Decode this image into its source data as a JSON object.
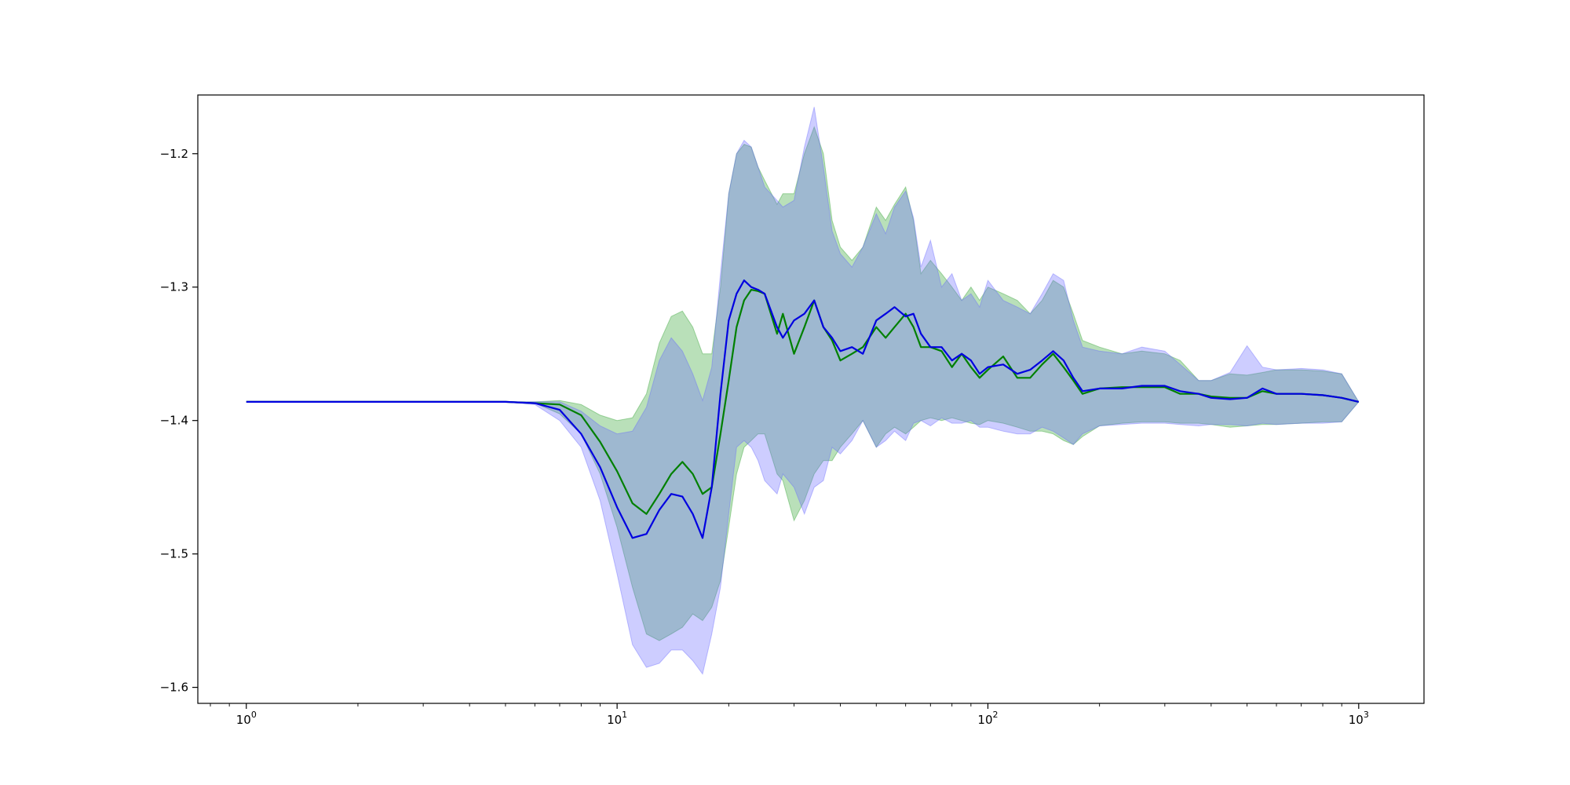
{
  "chart_data": {
    "type": "line",
    "title": "",
    "xlabel": "",
    "ylabel": "",
    "xscale": "log",
    "xlim": [
      0.74,
      1500
    ],
    "ylim": [
      -1.612,
      -1.156
    ],
    "grid": false,
    "legend": "none",
    "x_ticks": [
      {
        "value": 1,
        "base": "10",
        "exp": "0"
      },
      {
        "value": 10,
        "base": "10",
        "exp": "1"
      },
      {
        "value": 100,
        "base": "10",
        "exp": "2"
      },
      {
        "value": 1000,
        "base": "10",
        "exp": "3"
      }
    ],
    "y_ticks": [
      {
        "value": -1.2,
        "label": "−1.2"
      },
      {
        "value": -1.3,
        "label": "−1.3"
      },
      {
        "value": -1.4,
        "label": "−1.4"
      },
      {
        "value": -1.5,
        "label": "−1.5"
      },
      {
        "value": -1.6,
        "label": "−1.6"
      }
    ],
    "series": [
      {
        "color": "#008000",
        "band_color": "#2ca02c",
        "x": [
          1,
          2,
          5,
          6,
          7,
          8,
          9,
          10,
          11,
          12,
          13,
          14,
          15,
          16,
          17,
          18,
          19,
          20,
          21,
          22,
          23,
          24,
          25,
          27,
          28,
          30,
          32,
          34,
          36,
          38,
          40,
          43,
          46,
          50,
          53,
          56,
          60,
          63,
          66,
          70,
          75,
          80,
          85,
          90,
          95,
          100,
          110,
          120,
          130,
          140,
          150,
          160,
          170,
          180,
          200,
          230,
          260,
          300,
          330,
          370,
          400,
          450,
          500,
          550,
          600,
          700,
          800,
          900,
          1000
        ],
        "y": [
          -1.386,
          -1.386,
          -1.386,
          -1.387,
          -1.388,
          -1.396,
          -1.416,
          -1.438,
          -1.462,
          -1.47,
          -1.455,
          -1.44,
          -1.431,
          -1.44,
          -1.455,
          -1.45,
          -1.41,
          -1.37,
          -1.33,
          -1.31,
          -1.302,
          -1.303,
          -1.305,
          -1.335,
          -1.32,
          -1.35,
          -1.33,
          -1.31,
          -1.33,
          -1.34,
          -1.355,
          -1.35,
          -1.345,
          -1.33,
          -1.338,
          -1.33,
          -1.32,
          -1.33,
          -1.345,
          -1.345,
          -1.348,
          -1.36,
          -1.35,
          -1.36,
          -1.368,
          -1.362,
          -1.352,
          -1.368,
          -1.368,
          -1.358,
          -1.35,
          -1.36,
          -1.37,
          -1.38,
          -1.376,
          -1.375,
          -1.375,
          -1.375,
          -1.38,
          -1.38,
          -1.382,
          -1.383,
          -1.383,
          -1.378,
          -1.38,
          -1.38,
          -1.381,
          -1.383,
          -1.386
        ],
        "upper": [
          -1.386,
          -1.386,
          -1.386,
          -1.386,
          -1.385,
          -1.388,
          -1.396,
          -1.4,
          -1.398,
          -1.38,
          -1.342,
          -1.322,
          -1.318,
          -1.33,
          -1.35,
          -1.35,
          -1.3,
          -1.23,
          -1.2,
          -1.193,
          -1.195,
          -1.21,
          -1.22,
          -1.238,
          -1.23,
          -1.23,
          -1.2,
          -1.18,
          -1.2,
          -1.25,
          -1.27,
          -1.28,
          -1.27,
          -1.24,
          -1.25,
          -1.238,
          -1.225,
          -1.25,
          -1.29,
          -1.28,
          -1.29,
          -1.3,
          -1.31,
          -1.3,
          -1.31,
          -1.3,
          -1.305,
          -1.31,
          -1.32,
          -1.31,
          -1.295,
          -1.3,
          -1.32,
          -1.34,
          -1.345,
          -1.35,
          -1.348,
          -1.35,
          -1.355,
          -1.37,
          -1.37,
          -1.365,
          -1.366,
          -1.364,
          -1.362,
          -1.362,
          -1.363,
          -1.365,
          -1.386
        ],
        "lower": [
          -1.386,
          -1.386,
          -1.386,
          -1.387,
          -1.395,
          -1.41,
          -1.44,
          -1.48,
          -1.525,
          -1.56,
          -1.565,
          -1.56,
          -1.555,
          -1.545,
          -1.55,
          -1.54,
          -1.52,
          -1.48,
          -1.44,
          -1.42,
          -1.415,
          -1.41,
          -1.41,
          -1.44,
          -1.445,
          -1.475,
          -1.46,
          -1.44,
          -1.43,
          -1.43,
          -1.42,
          -1.41,
          -1.4,
          -1.42,
          -1.41,
          -1.405,
          -1.41,
          -1.405,
          -1.4,
          -1.398,
          -1.4,
          -1.398,
          -1.4,
          -1.402,
          -1.403,
          -1.4,
          -1.402,
          -1.405,
          -1.408,
          -1.408,
          -1.41,
          -1.415,
          -1.418,
          -1.412,
          -1.404,
          -1.402,
          -1.401,
          -1.401,
          -1.402,
          -1.402,
          -1.403,
          -1.405,
          -1.404,
          -1.403,
          -1.403,
          -1.402,
          -1.401,
          -1.401,
          -1.386
        ]
      },
      {
        "color": "#0000e0",
        "band_color": "#6666ff",
        "x": [
          1,
          2,
          5,
          6,
          7,
          8,
          9,
          10,
          11,
          12,
          13,
          14,
          15,
          16,
          17,
          18,
          19,
          20,
          21,
          22,
          23,
          24,
          25,
          27,
          28,
          30,
          32,
          34,
          36,
          38,
          40,
          43,
          46,
          50,
          53,
          56,
          60,
          63,
          66,
          70,
          75,
          80,
          85,
          90,
          95,
          100,
          110,
          120,
          130,
          140,
          150,
          160,
          170,
          180,
          200,
          230,
          260,
          300,
          330,
          370,
          400,
          450,
          500,
          550,
          600,
          700,
          800,
          900,
          1000
        ],
        "y": [
          -1.386,
          -1.386,
          -1.386,
          -1.387,
          -1.392,
          -1.41,
          -1.435,
          -1.465,
          -1.488,
          -1.485,
          -1.467,
          -1.455,
          -1.457,
          -1.47,
          -1.488,
          -1.45,
          -1.38,
          -1.325,
          -1.305,
          -1.295,
          -1.3,
          -1.302,
          -1.305,
          -1.33,
          -1.338,
          -1.325,
          -1.32,
          -1.31,
          -1.33,
          -1.338,
          -1.348,
          -1.345,
          -1.35,
          -1.325,
          -1.32,
          -1.315,
          -1.322,
          -1.32,
          -1.335,
          -1.345,
          -1.345,
          -1.355,
          -1.35,
          -1.355,
          -1.365,
          -1.36,
          -1.358,
          -1.365,
          -1.362,
          -1.355,
          -1.348,
          -1.355,
          -1.368,
          -1.378,
          -1.376,
          -1.376,
          -1.374,
          -1.374,
          -1.378,
          -1.38,
          -1.383,
          -1.384,
          -1.383,
          -1.376,
          -1.38,
          -1.38,
          -1.381,
          -1.383,
          -1.386
        ],
        "upper": [
          -1.386,
          -1.386,
          -1.386,
          -1.386,
          -1.386,
          -1.393,
          -1.404,
          -1.41,
          -1.408,
          -1.39,
          -1.355,
          -1.338,
          -1.348,
          -1.365,
          -1.385,
          -1.36,
          -1.29,
          -1.23,
          -1.2,
          -1.19,
          -1.195,
          -1.21,
          -1.225,
          -1.235,
          -1.24,
          -1.235,
          -1.195,
          -1.165,
          -1.21,
          -1.258,
          -1.275,
          -1.285,
          -1.27,
          -1.245,
          -1.26,
          -1.24,
          -1.228,
          -1.248,
          -1.285,
          -1.265,
          -1.3,
          -1.29,
          -1.31,
          -1.305,
          -1.315,
          -1.295,
          -1.31,
          -1.315,
          -1.32,
          -1.305,
          -1.29,
          -1.295,
          -1.325,
          -1.345,
          -1.348,
          -1.35,
          -1.345,
          -1.348,
          -1.358,
          -1.37,
          -1.37,
          -1.364,
          -1.344,
          -1.36,
          -1.362,
          -1.361,
          -1.362,
          -1.365,
          -1.386
        ],
        "lower": [
          -1.386,
          -1.386,
          -1.386,
          -1.388,
          -1.4,
          -1.42,
          -1.46,
          -1.515,
          -1.568,
          -1.585,
          -1.582,
          -1.572,
          -1.572,
          -1.58,
          -1.59,
          -1.56,
          -1.525,
          -1.47,
          -1.42,
          -1.415,
          -1.42,
          -1.43,
          -1.445,
          -1.455,
          -1.44,
          -1.45,
          -1.47,
          -1.45,
          -1.445,
          -1.42,
          -1.425,
          -1.415,
          -1.4,
          -1.42,
          -1.415,
          -1.408,
          -1.415,
          -1.402,
          -1.4,
          -1.404,
          -1.398,
          -1.402,
          -1.402,
          -1.4,
          -1.405,
          -1.405,
          -1.408,
          -1.41,
          -1.41,
          -1.405,
          -1.408,
          -1.413,
          -1.418,
          -1.41,
          -1.404,
          -1.403,
          -1.402,
          -1.402,
          -1.403,
          -1.404,
          -1.403,
          -1.403,
          -1.404,
          -1.402,
          -1.403,
          -1.402,
          -1.402,
          -1.401,
          -1.386
        ]
      }
    ]
  }
}
